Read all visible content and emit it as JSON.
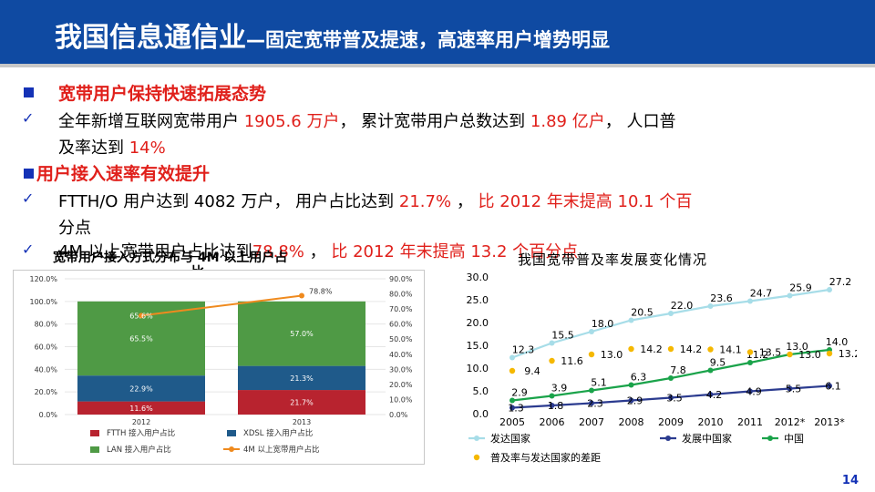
{
  "header": {
    "title_main": "我国信息通信业",
    "title_sub": "—固定宽带普及提速，高速率用户增势明显"
  },
  "bullets": {
    "b1_head": "宽带用户保持快速拓展态势",
    "b1_l1_a": "全年新增互联网宽带用户 ",
    "b1_l1_b": "1905.6 万户",
    "b1_l1_c": "， 累计宽带用户总数达到 ",
    "b1_l1_d": "1.89 亿户",
    "b1_l1_e": "， 人口普",
    "b1_l2_a": "及率达到 ",
    "b1_l2_b": "14%",
    "b2_head": "用户接入速率有效提升",
    "b2_l1_a": "FTTH/O 用户达到 4082 万户， 用户占比达到 ",
    "b2_l1_b": "21.7%",
    "b2_l1_c": " ，",
    "b2_l1_d": " 比 2012 年末提高 10.1 个百",
    "b2_l2": "分点",
    "b3_l1_a": "4M 以上宽带用户占比达到",
    "b3_l1_b": "78.8%",
    "b3_l1_c": " ，",
    "b3_l1_d": " 比 2012 年末提高 13.2 个百分点"
  },
  "left_chart": {
    "title_line1": "宽带用户接入方式分布与 4M 以上用户占",
    "title_line2": "比"
  },
  "right_chart": {
    "title": "我国宽带普及率发展变化情况"
  },
  "page_number": "14",
  "colors": {
    "title_bar": "#0f4aa2",
    "accent_red": "#e0201b",
    "bullet_blue": "#1432b6",
    "ftth": "#b8232f",
    "xdsl": "#1f5a8a",
    "lan": "#4f9a45",
    "line_4m": "#ef8a1e",
    "developed": "#a7dde8",
    "developing": "#2b3b8f",
    "china": "#1aa34a",
    "gap": "#f5b800"
  },
  "chart_data": [
    {
      "type": "bar",
      "categories": [
        "2012",
        "2013"
      ],
      "series": [
        {
          "name": "FTTH 接入用户占比",
          "values": [
            11.6,
            21.7
          ]
        },
        {
          "name": "XDSL 接入用户占比",
          "values": [
            22.9,
            21.3
          ]
        },
        {
          "name": "LAN 接入用户占比",
          "values": [
            65.5,
            57.0
          ]
        },
        {
          "name": "4M 以上宽带用户占比",
          "values": [
            65.6,
            78.8
          ],
          "axis": "right"
        }
      ],
      "stacked": true,
      "ylim": [
        0,
        120
      ],
      "y_ticks": [
        "0.0%",
        "20.0%",
        "40.0%",
        "60.0%",
        "80.0%",
        "100.0%",
        "120.0%"
      ],
      "y2lim": [
        0,
        90
      ],
      "y2_ticks": [
        "0.0%",
        "10.0%",
        "20.0%",
        "30.0%",
        "40.0%",
        "50.0%",
        "60.0%",
        "70.0%",
        "80.0%",
        "90.0%"
      ],
      "bar_labels": [
        [
          "11.6%",
          "22.9%",
          "65.5%"
        ],
        [
          "21.7%",
          "21.3%",
          "57.0%"
        ]
      ],
      "line_labels": [
        "65.6%",
        "78.8%"
      ],
      "legend_placement": "bottom"
    },
    {
      "type": "line",
      "x": [
        "2005",
        "2006",
        "2007",
        "2008",
        "2009",
        "2010",
        "2011",
        "2012*",
        "2013*"
      ],
      "series": [
        {
          "name": "发达国家",
          "values": [
            12.3,
            15.5,
            18.0,
            20.5,
            22.0,
            23.6,
            24.7,
            25.9,
            27.2
          ]
        },
        {
          "name": "发展中国家",
          "values": [
            1.3,
            1.8,
            2.3,
            2.9,
            3.5,
            4.2,
            4.9,
            5.5,
            6.1
          ]
        },
        {
          "name": "中国",
          "values": [
            2.9,
            3.9,
            5.1,
            6.3,
            7.8,
            9.5,
            11.2,
            13.0,
            14.0
          ]
        },
        {
          "name": "普及率与发达国家的差距",
          "values": [
            9.4,
            11.6,
            13.0,
            14.2,
            14.2,
            14.1,
            13.5,
            13.0,
            13.2
          ],
          "style": "dots"
        }
      ],
      "labels": {
        "发达国家": [
          "12.3",
          "15.5",
          "18.0",
          "20.5",
          "22.0",
          "23.6",
          "24.7",
          "25.9",
          "27.2"
        ],
        "发展中国家": [
          "1.3",
          "1.8",
          "2.3",
          "2.9",
          "3.5",
          "4.2",
          "4.9",
          "5.5",
          "6.1"
        ],
        "中国": [
          "2.9",
          "3.9",
          "5.1",
          "6.3",
          "7.8",
          "9.5",
          "11.2",
          "13.0",
          "14.0"
        ],
        "普及率与发达国家的差距": [
          "9.4",
          "11.6",
          "13.0",
          "14.2",
          "14.2",
          "14.1",
          "13.5",
          "13.0",
          "13.2"
        ]
      },
      "ylim": [
        0,
        30
      ],
      "y_ticks": [
        "0.0",
        "5.0",
        "10.0",
        "15.0",
        "20.0",
        "25.0",
        "30.0"
      ],
      "legend_placement": "bottom"
    }
  ]
}
